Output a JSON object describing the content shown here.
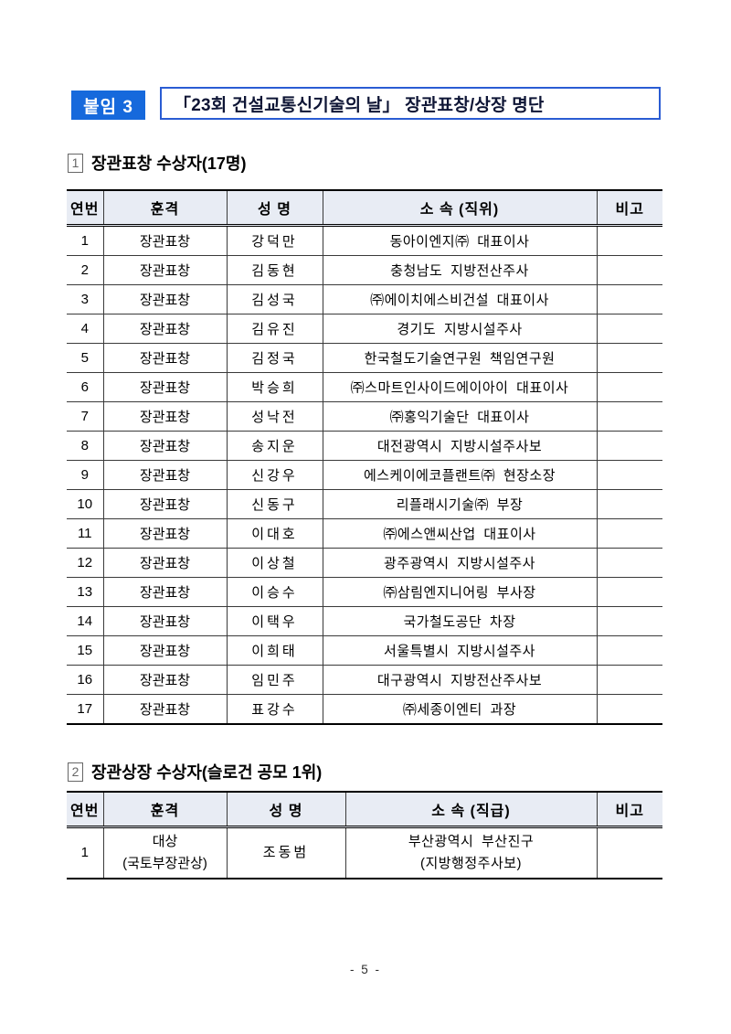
{
  "colors": {
    "accent_blue": "#1669dc",
    "title_border_blue": "#2a5cd3",
    "table_header_bg": "#e8ecf4"
  },
  "header": {
    "attachment_label": "붙임 3",
    "title": "「23회 건설교통신기술의 날」  장관표창/상장 명단"
  },
  "section1": {
    "number": "1",
    "title": "장관표창 수상자(17명)",
    "columns": [
      "연번",
      "훈격",
      "성  명",
      "소 속 (직위)",
      "비고"
    ],
    "rows": [
      [
        "1",
        "장관표창",
        "강덕만",
        "동아이엔지㈜ 대표이사",
        ""
      ],
      [
        "2",
        "장관표창",
        "김동현",
        "충청남도 지방전산주사",
        ""
      ],
      [
        "3",
        "장관표창",
        "김성국",
        "㈜에이치에스비건설 대표이사",
        ""
      ],
      [
        "4",
        "장관표창",
        "김유진",
        "경기도 지방시설주사",
        ""
      ],
      [
        "5",
        "장관표창",
        "김정국",
        "한국철도기술연구원 책임연구원",
        ""
      ],
      [
        "6",
        "장관표창",
        "박승희",
        "㈜스마트인사이드에이아이 대표이사",
        ""
      ],
      [
        "7",
        "장관표창",
        "성낙전",
        "㈜홍익기술단 대표이사",
        ""
      ],
      [
        "8",
        "장관표창",
        "송지운",
        "대전광역시 지방시설주사보",
        ""
      ],
      [
        "9",
        "장관표창",
        "신강우",
        "에스케이에코플랜트㈜ 현장소장",
        ""
      ],
      [
        "10",
        "장관표창",
        "신동구",
        "리플래시기술㈜ 부장",
        ""
      ],
      [
        "11",
        "장관표창",
        "이대호",
        "㈜에스앤씨산업 대표이사",
        ""
      ],
      [
        "12",
        "장관표창",
        "이상철",
        "광주광역시 지방시설주사",
        ""
      ],
      [
        "13",
        "장관표창",
        "이승수",
        "㈜삼림엔지니어링 부사장",
        ""
      ],
      [
        "14",
        "장관표창",
        "이택우",
        "국가철도공단 차장",
        ""
      ],
      [
        "15",
        "장관표창",
        "이희태",
        "서울특별시 지방시설주사",
        ""
      ],
      [
        "16",
        "장관표창",
        "임민주",
        "대구광역시 지방전산주사보",
        ""
      ],
      [
        "17",
        "장관표창",
        "표강수",
        "㈜세종이엔티 과장",
        ""
      ]
    ]
  },
  "section2": {
    "number": "2",
    "title": "장관상장 수상자(슬로건 공모 1위)",
    "columns": [
      "연번",
      "훈격",
      "성  명",
      "소 속 (직급)",
      "비고"
    ],
    "rows": [
      [
        "1",
        [
          "대상",
          "(국토부장관상)"
        ],
        "조동범",
        [
          "부산광역시 부산진구",
          "(지방행정주사보)"
        ],
        ""
      ]
    ]
  },
  "footer": {
    "page_number_label": "- 5 -"
  }
}
